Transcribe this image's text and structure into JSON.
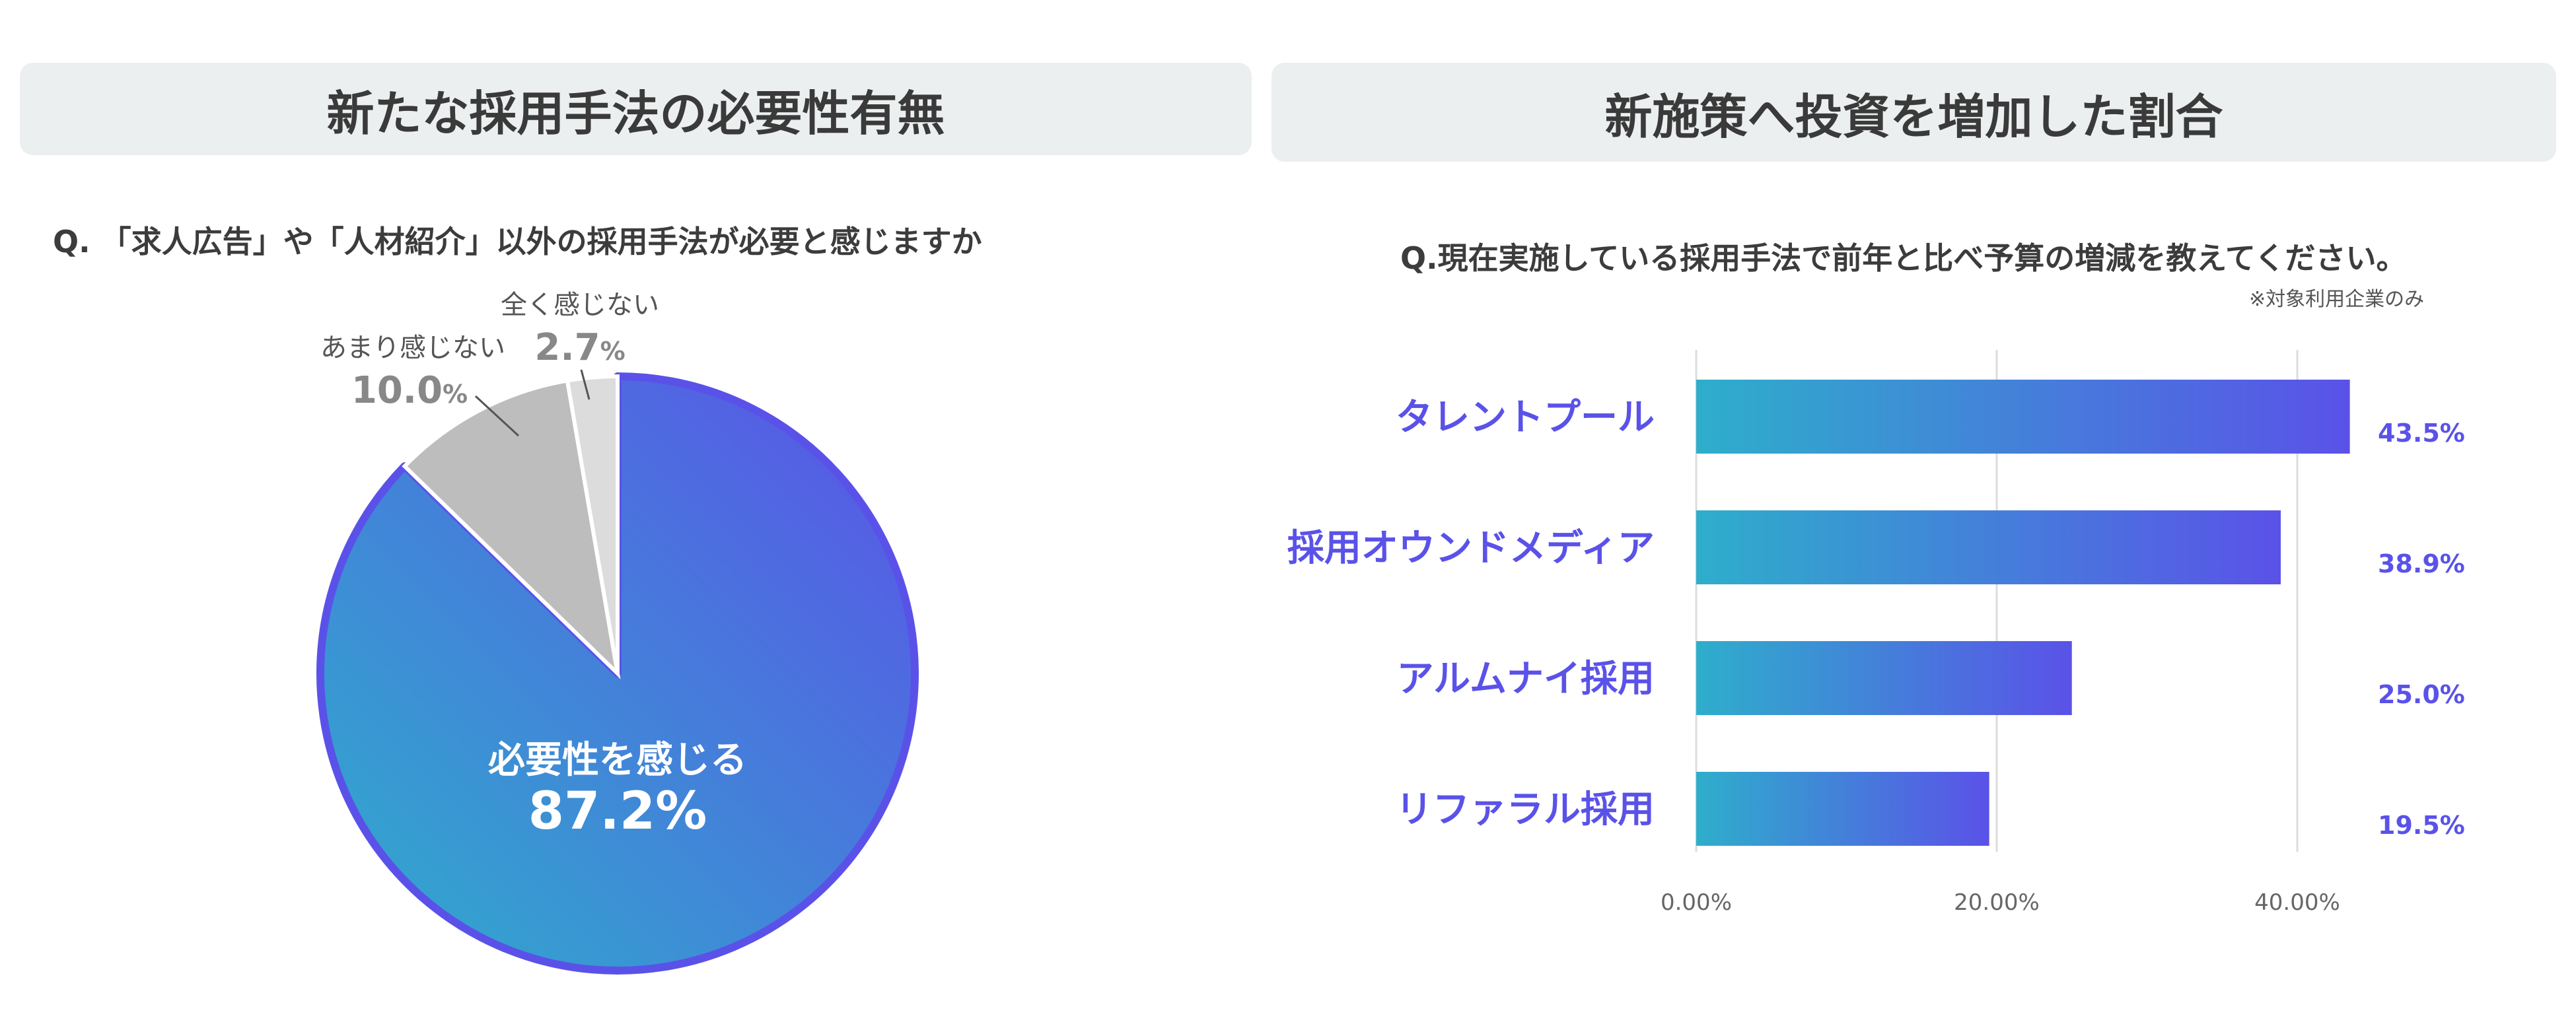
{
  "left_panel": {
    "title": "新たな採用手法の必要性有無",
    "question": "Q. 「求人広告」や「人材紹介」以外の採用手法が必要と感じますか"
  },
  "right_panel": {
    "title": "新施策へ投資を増加した割合",
    "question": "Q.現在実施している採用手法で前年と比べ予算の増減を教えてください。",
    "note": "※対象利用企業のみ"
  },
  "colors": {
    "accent": "#5a52e8",
    "teal": "#2eaecb",
    "gray_mid": "#bdbdbd",
    "gray_light": "#dcdcdc",
    "label_gray": "#888888"
  },
  "chart_data": [
    {
      "type": "pie",
      "slices": [
        {
          "label": "必要性を感じる",
          "value": 87.2,
          "display": "87.2%",
          "color": "gradient"
        },
        {
          "label": "あまり感じない",
          "value": 10.0,
          "display_num": "10.0",
          "display_unit": "%",
          "color": "#bdbdbd"
        },
        {
          "label": "全く感じない",
          "value": 2.7,
          "display_num": "2.7",
          "display_unit": "%",
          "color": "#dcdcdc"
        }
      ]
    },
    {
      "type": "bar",
      "orientation": "horizontal",
      "categories": [
        "タレントプール",
        "採用オウンドメディア",
        "アルムナイ採用",
        "リファラル採用"
      ],
      "values": [
        43.5,
        38.9,
        25.0,
        19.5
      ],
      "value_labels": [
        "43.5%",
        "38.9%",
        "25.0%",
        "19.5%"
      ],
      "xlim": [
        0,
        50
      ],
      "ticks": [
        0,
        20,
        40
      ],
      "tick_labels": [
        "0.00%",
        "20.00%",
        "40.00%"
      ],
      "grid": true
    }
  ]
}
